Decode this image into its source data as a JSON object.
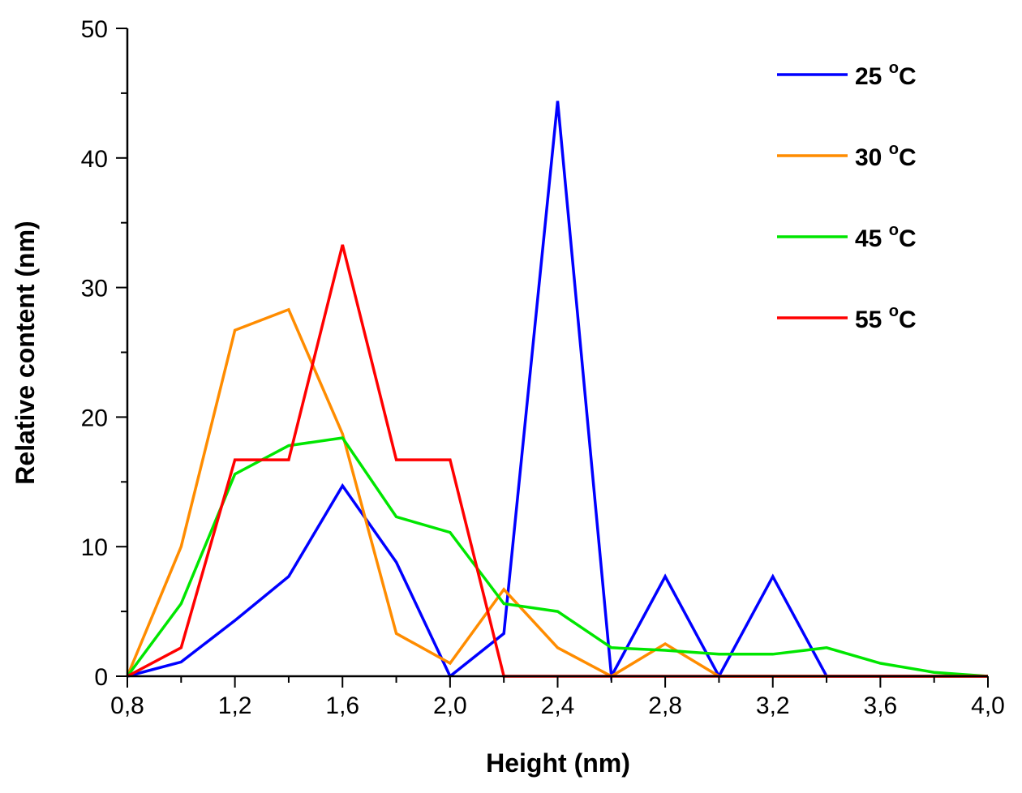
{
  "chart_data": {
    "type": "line",
    "title": "",
    "xlabel": "Height (nm)",
    "ylabel": "Relative content (nm)",
    "xlim": [
      0.8,
      4.0
    ],
    "ylim": [
      0,
      50
    ],
    "grid": false,
    "legend_position": "top-right",
    "x_ticks": [
      "0,8",
      "1,2",
      "1,6",
      "2,0",
      "2,4",
      "2,8",
      "3,2",
      "3,6",
      "4,0"
    ],
    "y_ticks": [
      "0",
      "10",
      "20",
      "30",
      "40",
      "50"
    ],
    "series": [
      {
        "name": "25 °C",
        "name_main": "25 ",
        "name_sup": "o",
        "name_tail": "C",
        "color": "#0000ff",
        "x": [
          0.8,
          1.0,
          1.2,
          1.4,
          1.6,
          1.8,
          2.0,
          2.2,
          2.4,
          2.6,
          2.8,
          3.0,
          3.2,
          3.4,
          3.6,
          3.8,
          4.0
        ],
        "y": [
          0,
          1.1,
          4.3,
          7.7,
          14.7,
          8.8,
          0,
          3.3,
          44.4,
          0,
          7.7,
          0,
          7.7,
          0,
          0,
          0,
          0
        ]
      },
      {
        "name": "30 °C",
        "name_main": "30 ",
        "name_sup": "o",
        "name_tail": "C",
        "color": "#ff8c00",
        "x": [
          0.8,
          1.0,
          1.2,
          1.4,
          1.6,
          1.8,
          2.0,
          2.2,
          2.4,
          2.6,
          2.8,
          3.0,
          3.2,
          3.4,
          3.6,
          3.8,
          4.0
        ],
        "y": [
          0,
          10,
          26.7,
          28.3,
          18.7,
          3.3,
          1.0,
          6.7,
          2.2,
          0,
          2.5,
          0,
          0,
          0,
          0,
          0,
          0
        ]
      },
      {
        "name": "45 °C",
        "name_main": "45 ",
        "name_sup": "o",
        "name_tail": "C",
        "color": "#00e600",
        "x": [
          0.8,
          1.0,
          1.2,
          1.4,
          1.6,
          1.8,
          2.0,
          2.2,
          2.4,
          2.6,
          2.8,
          3.0,
          3.2,
          3.4,
          3.6,
          3.8,
          4.0
        ],
        "y": [
          0,
          5.6,
          15.6,
          17.8,
          18.4,
          12.3,
          11.1,
          5.6,
          5.0,
          2.2,
          2.0,
          1.7,
          1.7,
          2.2,
          1.0,
          0.3,
          0
        ]
      },
      {
        "name": "55 °C",
        "name_main": "55 ",
        "name_sup": "o",
        "name_tail": "C",
        "color": "#ff0000",
        "x": [
          0.8,
          1.0,
          1.2,
          1.4,
          1.6,
          1.8,
          2.0,
          2.2,
          2.4,
          2.6,
          2.8,
          3.0,
          3.2,
          3.4,
          3.6,
          3.8,
          4.0
        ],
        "y": [
          0,
          2.2,
          16.7,
          16.7,
          33.3,
          16.7,
          16.7,
          0,
          0,
          0,
          0,
          0,
          0,
          0,
          0,
          0,
          0
        ]
      }
    ]
  }
}
